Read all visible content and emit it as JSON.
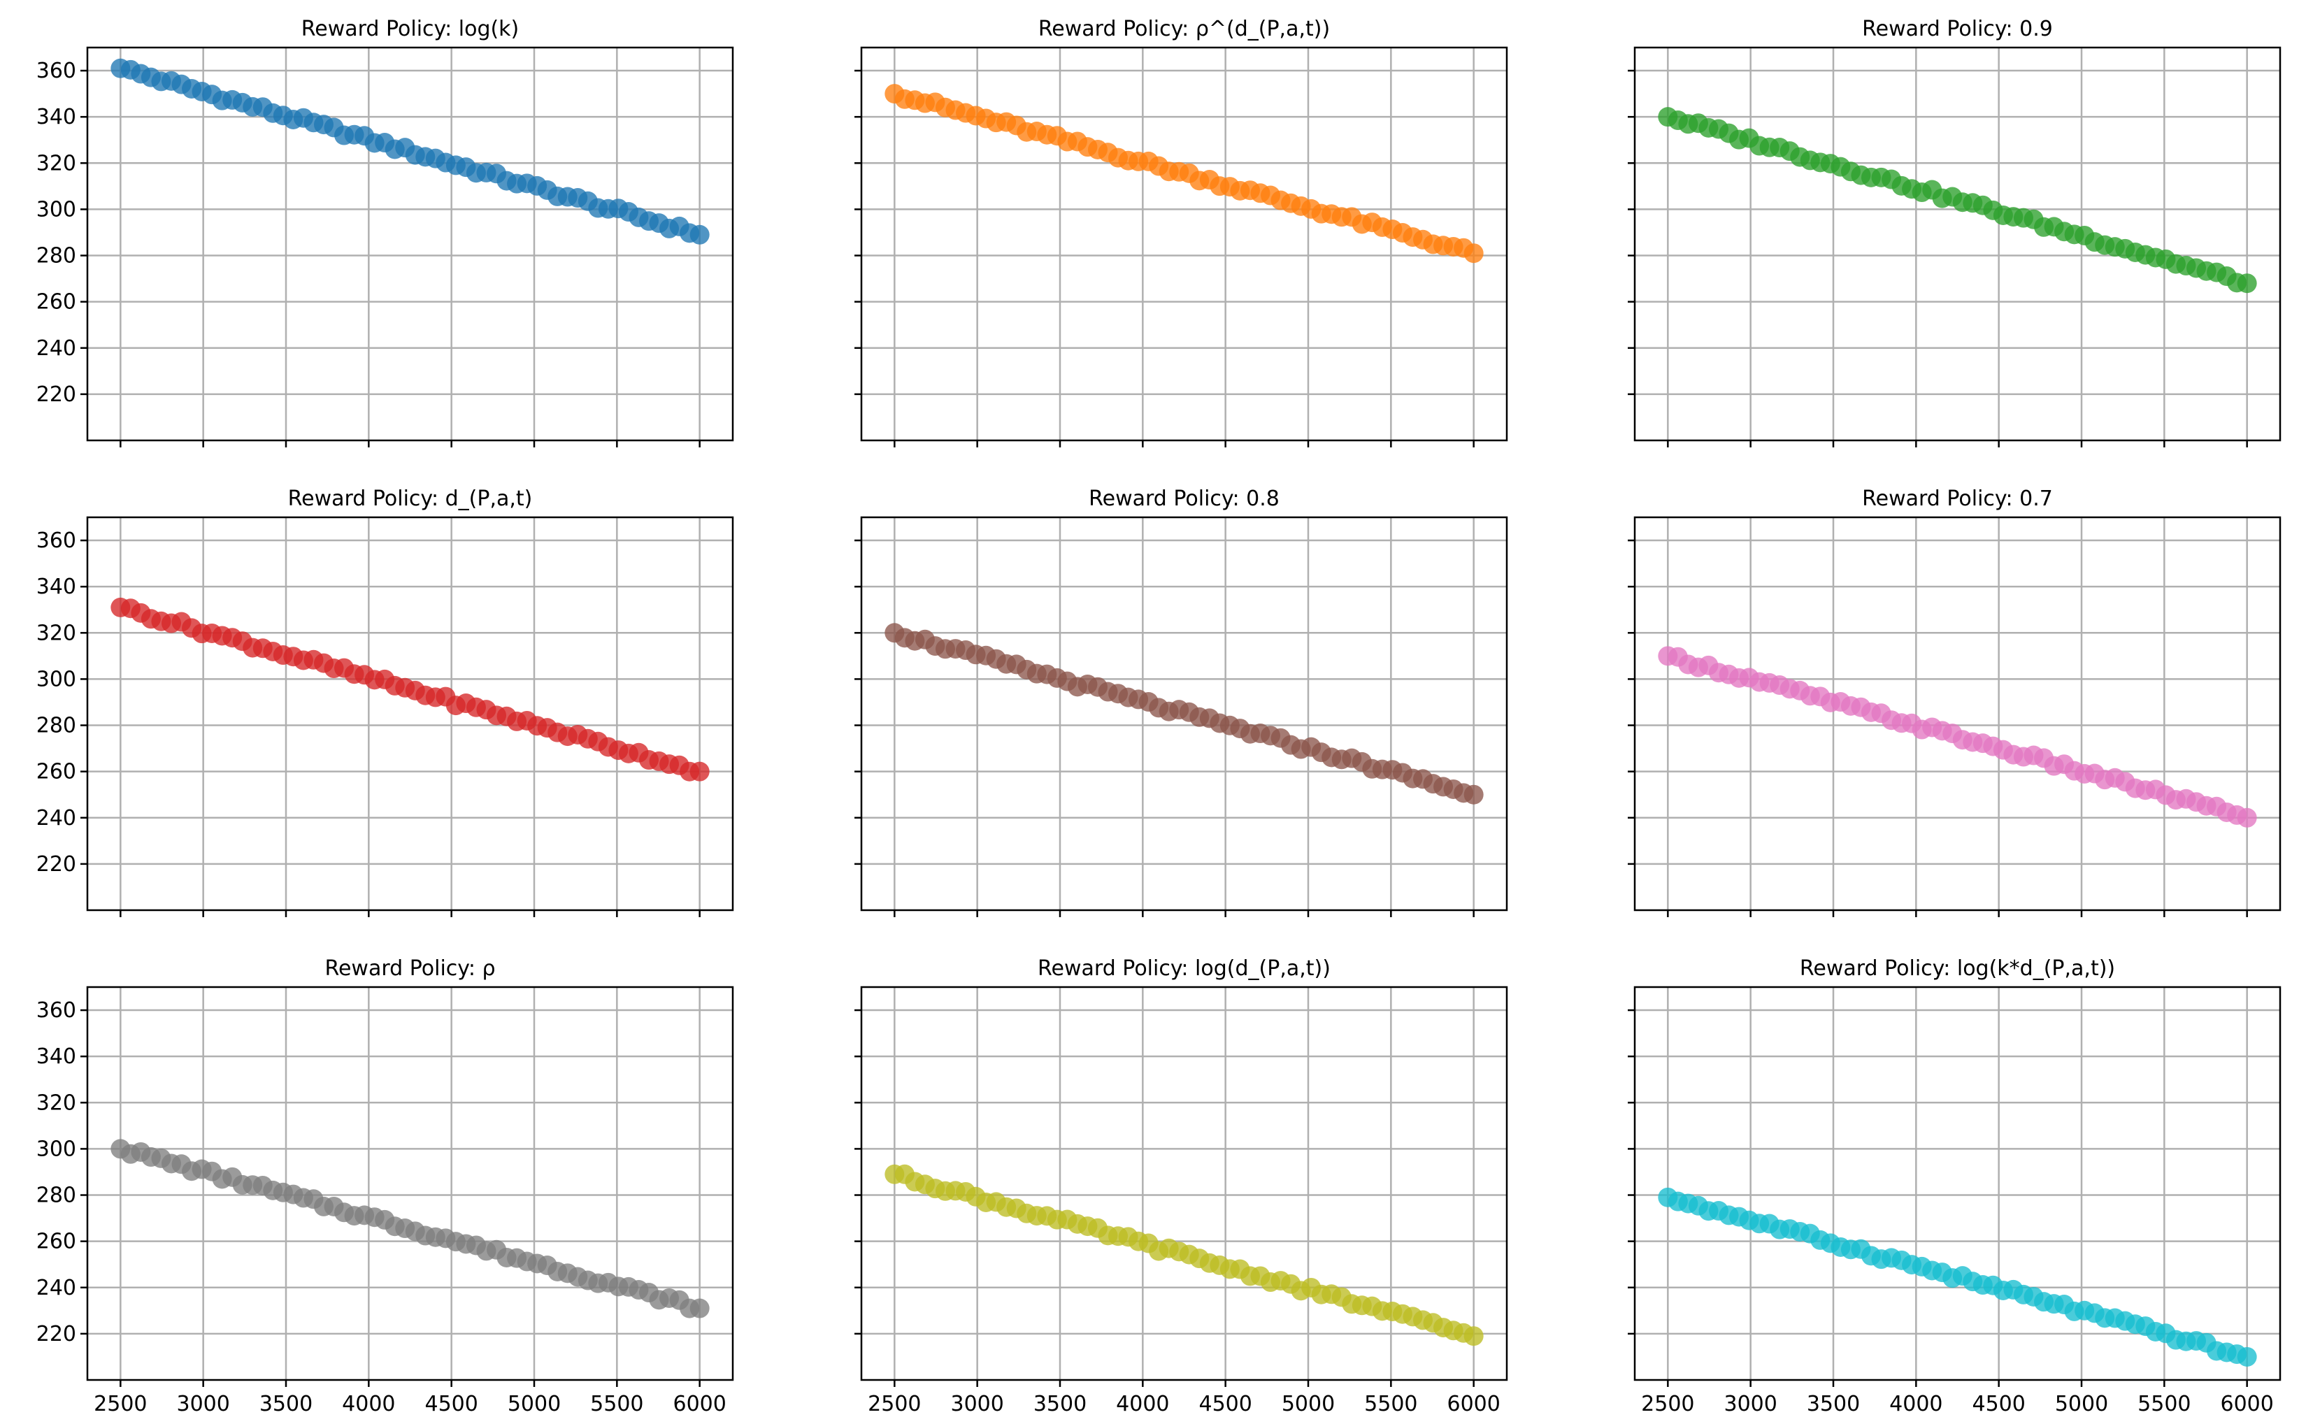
{
  "chart_data": [
    {
      "type": "scatter",
      "title": "Reward Policy: log(k)",
      "color": "#1f77b4",
      "x_start": 2500,
      "x_end": 6000,
      "count": 58,
      "y_start": 361,
      "y_end": 289,
      "ylim": [
        200,
        370
      ],
      "xlim": [
        2300,
        6200
      ],
      "yticks": [
        220,
        240,
        260,
        280,
        300,
        320,
        340,
        360
      ],
      "xticks": [
        2500,
        3000,
        3500,
        4000,
        4500,
        5000,
        5500,
        6000
      ],
      "grid": true
    },
    {
      "type": "scatter",
      "title": "Reward Policy: ρ^(d_(P,a,t))",
      "color": "#ff7f0e",
      "x_start": 2500,
      "x_end": 6000,
      "count": 58,
      "y_start": 350,
      "y_end": 281,
      "ylim": [
        200,
        370
      ],
      "xlim": [
        2300,
        6200
      ],
      "yticks": [
        220,
        240,
        260,
        280,
        300,
        320,
        340,
        360
      ],
      "xticks": [
        2500,
        3000,
        3500,
        4000,
        4500,
        5000,
        5500,
        6000
      ],
      "grid": true
    },
    {
      "type": "scatter",
      "title": "Reward Policy: 0.9",
      "color": "#2ca02c",
      "x_start": 2500,
      "x_end": 6000,
      "count": 58,
      "y_start": 340,
      "y_end": 268,
      "ylim": [
        200,
        370
      ],
      "xlim": [
        2300,
        6200
      ],
      "yticks": [
        220,
        240,
        260,
        280,
        300,
        320,
        340,
        360
      ],
      "xticks": [
        2500,
        3000,
        3500,
        4000,
        4500,
        5000,
        5500,
        6000
      ],
      "grid": true
    },
    {
      "type": "scatter",
      "title": "Reward Policy: d_(P,a,t)",
      "color": "#d62728",
      "x_start": 2500,
      "x_end": 6000,
      "count": 58,
      "y_start": 331,
      "y_end": 260,
      "ylim": [
        200,
        370
      ],
      "xlim": [
        2300,
        6200
      ],
      "yticks": [
        220,
        240,
        260,
        280,
        300,
        320,
        340,
        360
      ],
      "xticks": [
        2500,
        3000,
        3500,
        4000,
        4500,
        5000,
        5500,
        6000
      ],
      "grid": true
    },
    {
      "type": "scatter",
      "title": "Reward Policy: 0.8",
      "color": "#8c564b",
      "x_start": 2500,
      "x_end": 6000,
      "count": 58,
      "y_start": 320,
      "y_end": 250,
      "ylim": [
        200,
        370
      ],
      "xlim": [
        2300,
        6200
      ],
      "yticks": [
        220,
        240,
        260,
        280,
        300,
        320,
        340,
        360
      ],
      "xticks": [
        2500,
        3000,
        3500,
        4000,
        4500,
        5000,
        5500,
        6000
      ],
      "grid": true
    },
    {
      "type": "scatter",
      "title": "Reward Policy: 0.7",
      "color": "#e377c2",
      "x_start": 2500,
      "x_end": 6000,
      "count": 58,
      "y_start": 310,
      "y_end": 240,
      "ylim": [
        200,
        370
      ],
      "xlim": [
        2300,
        6200
      ],
      "yticks": [
        220,
        240,
        260,
        280,
        300,
        320,
        340,
        360
      ],
      "xticks": [
        2500,
        3000,
        3500,
        4000,
        4500,
        5000,
        5500,
        6000
      ],
      "grid": true
    },
    {
      "type": "scatter",
      "title": "Reward Policy: ρ",
      "color": "#7f7f7f",
      "x_start": 2500,
      "x_end": 6000,
      "count": 58,
      "y_start": 300,
      "y_end": 231,
      "ylim": [
        200,
        370
      ],
      "xlim": [
        2300,
        6200
      ],
      "yticks": [
        220,
        240,
        260,
        280,
        300,
        320,
        340,
        360
      ],
      "xticks": [
        2500,
        3000,
        3500,
        4000,
        4500,
        5000,
        5500,
        6000
      ],
      "grid": true
    },
    {
      "type": "scatter",
      "title": "Reward Policy: log(d_(P,a,t))",
      "color": "#bcbd22",
      "x_start": 2500,
      "x_end": 6000,
      "count": 58,
      "y_start": 289,
      "y_end": 219,
      "ylim": [
        200,
        370
      ],
      "xlim": [
        2300,
        6200
      ],
      "yticks": [
        220,
        240,
        260,
        280,
        300,
        320,
        340,
        360
      ],
      "xticks": [
        2500,
        3000,
        3500,
        4000,
        4500,
        5000,
        5500,
        6000
      ],
      "grid": true
    },
    {
      "type": "scatter",
      "title": "Reward Policy: log(k*d_(P,a,t))",
      "color": "#17becf",
      "x_start": 2500,
      "x_end": 6000,
      "count": 58,
      "y_start": 279,
      "y_end": 210,
      "ylim": [
        200,
        370
      ],
      "xlim": [
        2300,
        6200
      ],
      "yticks": [
        220,
        240,
        260,
        280,
        300,
        320,
        340,
        360
      ],
      "xticks": [
        2500,
        3000,
        3500,
        4000,
        4500,
        5000,
        5500,
        6000
      ],
      "grid": true
    }
  ]
}
